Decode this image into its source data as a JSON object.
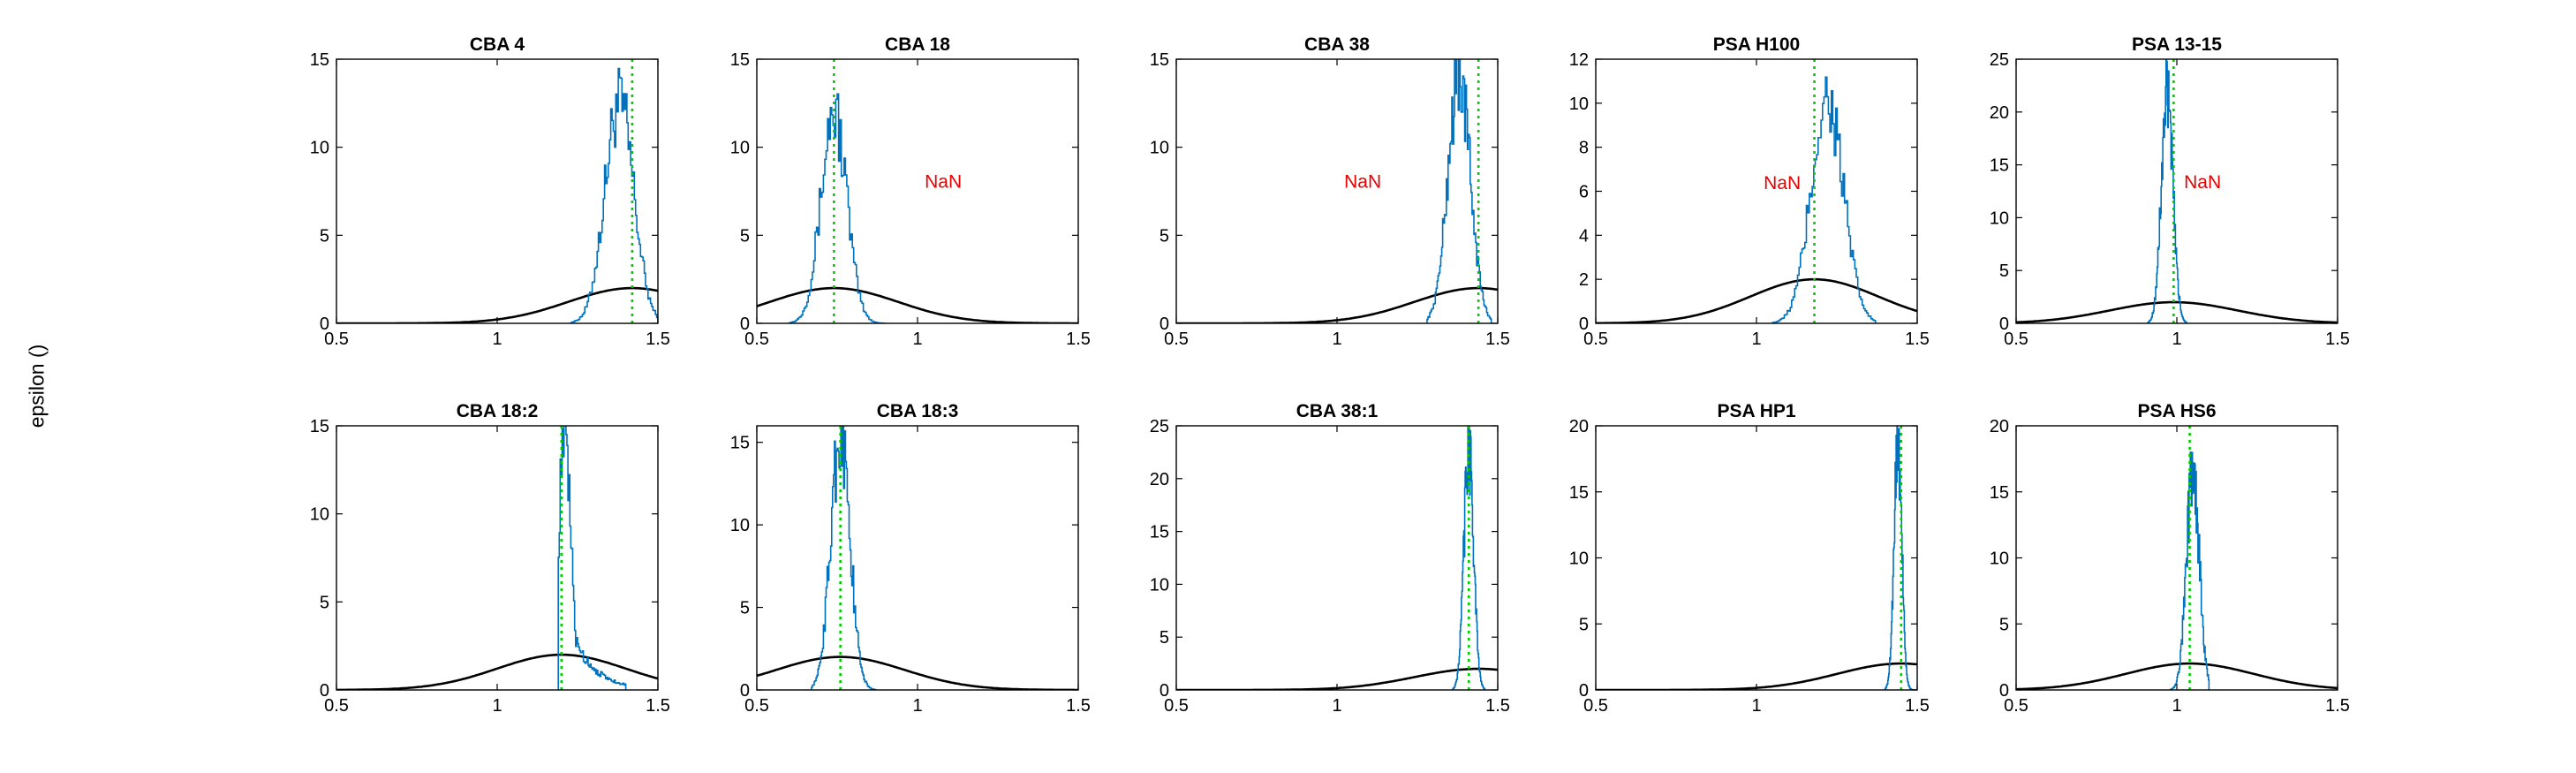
{
  "figure": {
    "ylabel": "epsilon ()",
    "colors": {
      "histogram": "#0072BD",
      "prior": "#000000",
      "marker": "#00CC00",
      "nan_text": "#E60000",
      "axis": "#000000"
    }
  },
  "chart_data": [
    {
      "type": "line",
      "title": "CBA 4",
      "xlim": [
        0.5,
        1.5
      ],
      "ylim": [
        0,
        15
      ],
      "xticks": [
        0.5,
        1,
        1.5
      ],
      "yticks": [
        0,
        5,
        10,
        15
      ],
      "marker_x": 1.42,
      "prior": {
        "mean": 1.42,
        "sd": 0.2,
        "peak": 2
      },
      "histogram": {
        "center": 1.38,
        "sd": 0.045,
        "peak": 12.5,
        "range": [
          1.23,
          1.5
        ]
      },
      "nan_label": ""
    },
    {
      "type": "line",
      "title": "CBA 18",
      "xlim": [
        0.5,
        1.5
      ],
      "ylim": [
        0,
        15
      ],
      "xticks": [
        0.5,
        1,
        1.5
      ],
      "yticks": [
        0,
        5,
        10,
        15
      ],
      "marker_x": 0.74,
      "prior": {
        "mean": 0.74,
        "sd": 0.2,
        "peak": 2
      },
      "histogram": {
        "center": 0.74,
        "sd": 0.04,
        "peak": 12,
        "range": [
          0.6,
          0.9
        ]
      },
      "nan_label": "NaN",
      "nan_pos": [
        1.08,
        7.7
      ]
    },
    {
      "type": "line",
      "title": "CBA 38",
      "xlim": [
        0.5,
        1.5
      ],
      "ylim": [
        0,
        15
      ],
      "xticks": [
        0.5,
        1,
        1.5
      ],
      "yticks": [
        0,
        5,
        10,
        15
      ],
      "marker_x": 1.44,
      "prior": {
        "mean": 1.44,
        "sd": 0.2,
        "peak": 2
      },
      "histogram": {
        "center": 1.38,
        "sd": 0.035,
        "peak": 14,
        "range": [
          1.28,
          1.48
        ]
      },
      "nan_label": "NaN",
      "nan_pos": [
        1.08,
        7.7
      ]
    },
    {
      "type": "line",
      "title": "PSA H100",
      "xlim": [
        0.5,
        1.5
      ],
      "ylim": [
        0,
        12
      ],
      "xticks": [
        0.5,
        1,
        1.5
      ],
      "yticks": [
        0,
        2,
        4,
        6,
        8,
        10,
        12
      ],
      "marker_x": 1.18,
      "prior": {
        "mean": 1.18,
        "sd": 0.2,
        "peak": 2
      },
      "histogram": {
        "center": 1.22,
        "sd": 0.05,
        "peak": 10.2,
        "range": [
          1.05,
          1.37
        ]
      },
      "nan_label": "NaN",
      "nan_pos": [
        1.08,
        6.1
      ]
    },
    {
      "type": "line",
      "title": "PSA 13-15",
      "xlim": [
        0.5,
        1.5
      ],
      "ylim": [
        0,
        25
      ],
      "xticks": [
        0.5,
        1,
        1.5
      ],
      "yticks": [
        0,
        5,
        10,
        15,
        20,
        25
      ],
      "marker_x": 0.99,
      "prior": {
        "mean": 0.99,
        "sd": 0.2,
        "peak": 2
      },
      "histogram": {
        "center": 0.97,
        "sd": 0.018,
        "peak": 21.5,
        "range": [
          0.91,
          1.03
        ]
      },
      "nan_label": "NaN",
      "nan_pos": [
        1.08,
        12.8
      ]
    },
    {
      "type": "line",
      "title": "CBA 18:2",
      "xlim": [
        0.5,
        1.5
      ],
      "ylim": [
        0,
        15
      ],
      "xticks": [
        0.5,
        1,
        1.5
      ],
      "yticks": [
        0,
        5,
        10,
        15
      ],
      "marker_x": 1.2,
      "prior": {
        "mean": 1.2,
        "sd": 0.2,
        "peak": 2
      },
      "histogram": {
        "center": 1.21,
        "sd": 0.02,
        "peak": 14,
        "range": [
          1.19,
          1.4
        ],
        "tail": 0.07
      },
      "nan_label": ""
    },
    {
      "type": "line",
      "title": "CBA 18:3",
      "xlim": [
        0.5,
        1.5
      ],
      "ylim": [
        0,
        16
      ],
      "xticks": [
        0.5,
        1,
        1.5
      ],
      "yticks": [
        0,
        5,
        10,
        15
      ],
      "marker_x": 0.76,
      "prior": {
        "mean": 0.76,
        "sd": 0.2,
        "peak": 2
      },
      "histogram": {
        "center": 0.76,
        "sd": 0.03,
        "peak": 15.5,
        "range": [
          0.67,
          0.87
        ]
      },
      "nan_label": ""
    },
    {
      "type": "line",
      "title": "CBA 38:1",
      "xlim": [
        0.5,
        1.5
      ],
      "ylim": [
        0,
        25
      ],
      "xticks": [
        0.5,
        1,
        1.5
      ],
      "yticks": [
        0,
        5,
        10,
        15,
        20,
        25
      ],
      "marker_x": 1.41,
      "prior": {
        "mean": 1.44,
        "sd": 0.2,
        "peak": 2
      },
      "histogram": {
        "center": 1.41,
        "sd": 0.015,
        "peak": 23,
        "range": [
          1.36,
          1.46
        ]
      },
      "nan_label": ""
    },
    {
      "type": "line",
      "title": "PSA HP1",
      "xlim": [
        0.5,
        1.5
      ],
      "ylim": [
        0,
        20
      ],
      "xticks": [
        0.5,
        1,
        1.5
      ],
      "yticks": [
        0,
        5,
        10,
        15,
        20
      ],
      "marker_x": 1.45,
      "prior": {
        "mean": 1.45,
        "sd": 0.2,
        "peak": 2
      },
      "histogram": {
        "center": 1.44,
        "sd": 0.012,
        "peak": 19,
        "range": [
          1.4,
          1.5
        ]
      },
      "nan_label": ""
    },
    {
      "type": "line",
      "title": "PSA HS6",
      "xlim": [
        0.5,
        1.5
      ],
      "ylim": [
        0,
        20
      ],
      "xticks": [
        0.5,
        1,
        1.5
      ],
      "yticks": [
        0,
        5,
        10,
        15,
        20
      ],
      "marker_x": 1.04,
      "prior": {
        "mean": 1.04,
        "sd": 0.2,
        "peak": 2
      },
      "histogram": {
        "center": 1.05,
        "sd": 0.02,
        "peak": 16.5,
        "range": [
          0.98,
          1.1
        ]
      },
      "nan_label": ""
    }
  ]
}
